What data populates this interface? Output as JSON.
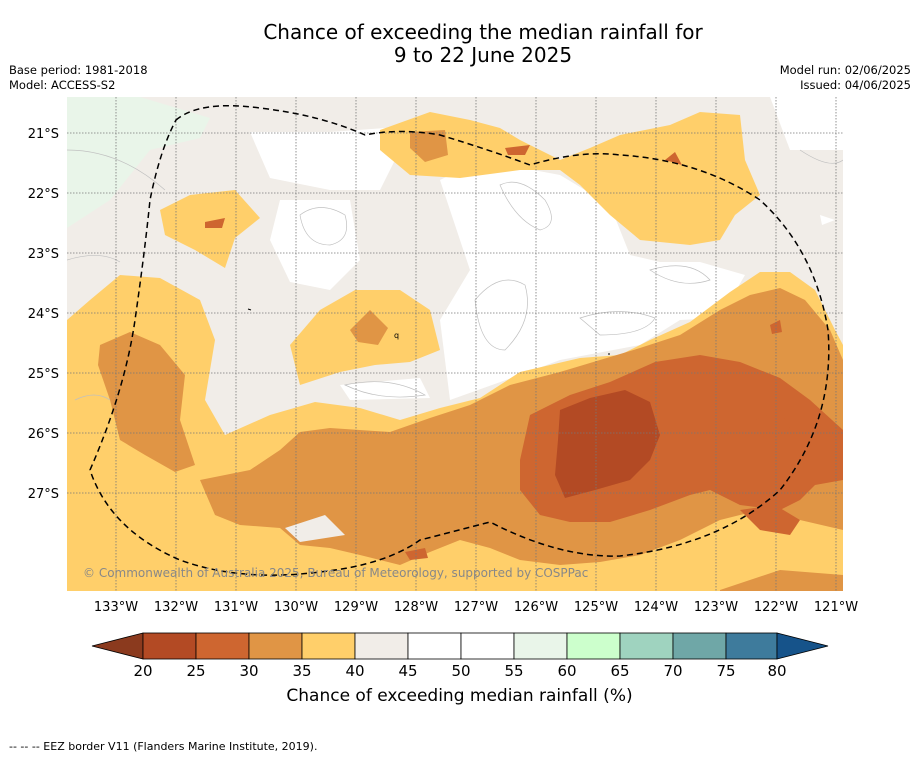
{
  "header": {
    "title_line1": "Chance of exceeding the median rainfall for",
    "title_line2": "9 to 22 June 2025",
    "base_period": "Base period: 1981-2018",
    "model": "Model: ACCESS-S2",
    "model_run": "Model run: 02/06/2025",
    "issued": "Issued: 04/06/2025"
  },
  "map": {
    "longitude_labels": [
      "133°W",
      "132°W",
      "131°W",
      "130°W",
      "129°W",
      "128°W",
      "127°W",
      "126°W",
      "125°W",
      "124°W",
      "123°W",
      "122°W",
      "121°W"
    ],
    "latitude_labels": [
      "21°S",
      "22°S",
      "23°S",
      "24°S",
      "25°S",
      "26°S",
      "27°S"
    ],
    "copyright": "© Commonwealth of Australia 2025, Bureau of Meteorology, supported by COSPPac",
    "eez_border_marker": "q"
  },
  "colorbar": {
    "ticks": [
      "20",
      "25",
      "30",
      "35",
      "40",
      "45",
      "50",
      "55",
      "60",
      "65",
      "70",
      "75",
      "80"
    ],
    "label": "Chance of exceeding median rainfall (%)",
    "colors": [
      "#8b3a1e",
      "#b34a24",
      "#ce6630",
      "#e09545",
      "#ffcf6a",
      "#f1ede8",
      "#ffffff",
      "#ffffff",
      "#e9f5e9",
      "#ccffcc",
      "#9fd3bf",
      "#6fa7a7",
      "#3e7b9c",
      "#16538a"
    ]
  },
  "legend": {
    "footnote": "--  --  -- EEZ border V11 (Flanders Marine Institute, 2019)."
  }
}
